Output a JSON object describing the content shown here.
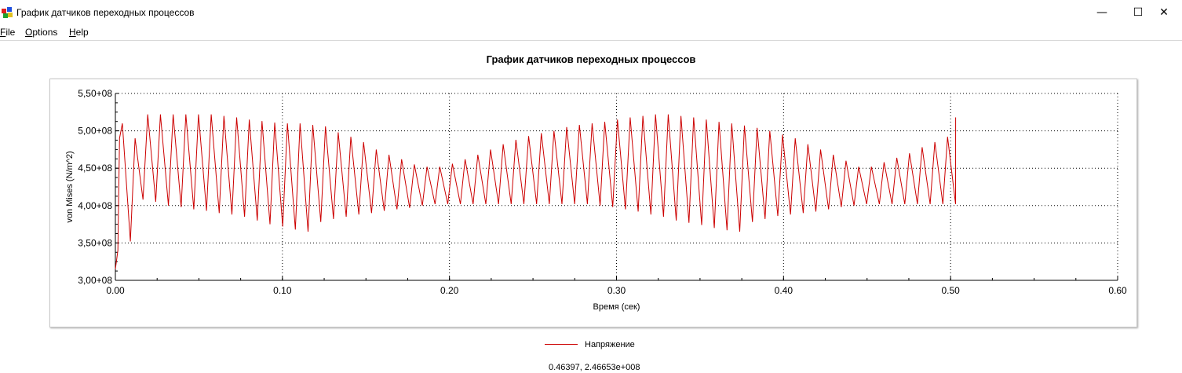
{
  "window": {
    "title": "График датчиков переходных процессов",
    "controls": {
      "minimize": "—",
      "maximize": "☐",
      "close": "✕"
    }
  },
  "menu": [
    {
      "label": "File",
      "mnemonic": "F",
      "rest": "ile"
    },
    {
      "label": "Options",
      "mnemonic": "O",
      "rest": "ptions"
    },
    {
      "label": "Help",
      "mnemonic": "H",
      "rest": "elp"
    }
  ],
  "chart_data": {
    "type": "line",
    "title": "График датчиков переходных процессов",
    "xlabel": "Время (сек)",
    "ylabel": "von Mises (N/m^2)",
    "xlim": [
      0,
      0.6
    ],
    "ylim": [
      300000000,
      550000000
    ],
    "x_ticks": [
      "0.00",
      "0.10",
      "0.20",
      "0.30",
      "0.40",
      "0.50",
      "0.60"
    ],
    "y_ticks": [
      "3,00+08",
      "3,50+08",
      "4,00+08",
      "4,50+08",
      "5,00+08",
      "5,50+08"
    ],
    "grid": true,
    "legend_position": "bottom-center",
    "series": [
      {
        "name": "Напряжение",
        "color": "#cc0000",
        "x_start": 0.0,
        "x_end": 0.503,
        "oscillation_period": 0.0076,
        "peaks_e8": [
          5.1,
          4.9,
          5.22,
          5.22,
          5.22,
          5.22,
          5.22,
          5.22,
          5.2,
          5.18,
          5.15,
          5.13,
          5.11,
          5.1,
          5.1,
          5.08,
          5.06,
          4.98,
          4.92,
          4.85,
          4.75,
          4.68,
          4.62,
          4.55,
          4.52,
          4.52,
          4.56,
          4.62,
          4.68,
          4.75,
          4.82,
          4.88,
          4.93,
          4.97,
          5.0,
          5.05,
          5.08,
          5.1,
          5.12,
          5.15,
          5.18,
          5.2,
          5.22,
          5.22,
          5.2,
          5.18,
          5.15,
          5.12,
          5.1,
          5.07,
          5.04,
          5.0,
          4.95,
          4.9,
          4.82,
          4.75,
          4.68,
          4.6,
          4.52,
          4.52,
          4.58,
          4.64,
          4.7,
          4.78,
          4.85,
          4.92,
          4.98,
          5.05,
          5.1,
          5.13,
          5.18
        ],
        "troughs_e8": [
          3.52,
          4.08,
          4.05,
          4.0,
          3.98,
          3.95,
          3.93,
          3.9,
          3.88,
          3.85,
          3.8,
          3.75,
          3.72,
          3.68,
          3.65,
          3.78,
          3.82,
          3.85,
          3.88,
          3.9,
          3.93,
          3.95,
          3.97,
          4.0,
          4.02,
          4.02,
          4.02,
          4.02,
          4.02,
          4.02,
          4.02,
          4.02,
          4.02,
          4.02,
          4.02,
          4.02,
          4.02,
          4.0,
          3.98,
          3.95,
          3.92,
          3.88,
          3.85,
          3.8,
          3.77,
          3.74,
          3.7,
          3.67,
          3.65,
          3.78,
          3.82,
          3.86,
          3.88,
          3.9,
          3.92,
          3.95,
          3.98,
          4.0,
          4.02,
          4.02,
          4.02,
          4.02,
          4.02,
          4.02,
          4.02,
          4.02,
          4.02,
          4.02,
          4.0,
          4.0
        ]
      }
    ]
  },
  "legend": {
    "label": "Напряжение",
    "color": "#cc0000"
  },
  "coordinate_readout": "0.46397, 2.46653e+008"
}
